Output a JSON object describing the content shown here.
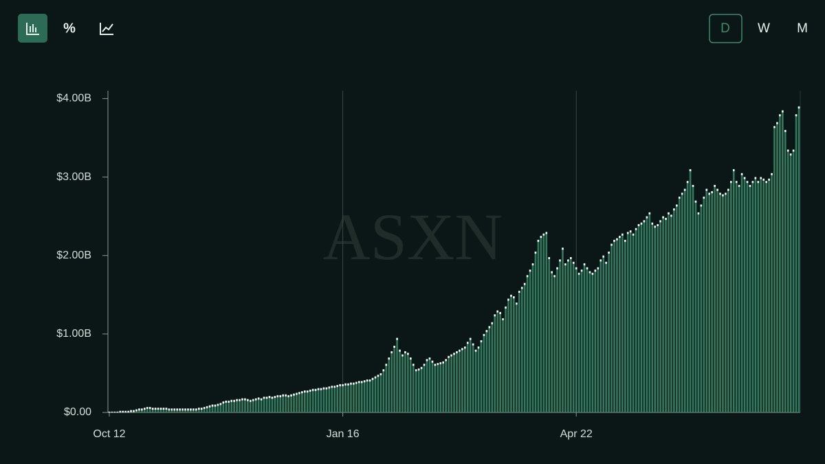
{
  "toolbar": {
    "percent_button": "%",
    "periods": [
      "D",
      "W",
      "M"
    ]
  },
  "chart_data": {
    "type": "bar",
    "watermark": "ASXN",
    "color": "#3a8c6c",
    "categories": [
      "Oct 12",
      null,
      null,
      null,
      null,
      null,
      null,
      null,
      null,
      null,
      null,
      null,
      null,
      null,
      null,
      null,
      null,
      null,
      null,
      null,
      null,
      null,
      null,
      null,
      null,
      null,
      null,
      null,
      null,
      null,
      null,
      null,
      null,
      null,
      null,
      null,
      null,
      null,
      null,
      null,
      null,
      null,
      null,
      null,
      null,
      null,
      null,
      null,
      null,
      null,
      null,
      null,
      null,
      null,
      null,
      null,
      null,
      null,
      null,
      null,
      null,
      null,
      null,
      null,
      null,
      null,
      null,
      null,
      null,
      null,
      null,
      null,
      null,
      null,
      null,
      null,
      null,
      null,
      null,
      null,
      null,
      null,
      null,
      null,
      null,
      null,
      "Jan 16",
      null,
      null,
      null,
      null,
      null,
      null,
      null,
      null,
      null,
      null,
      null,
      null,
      null,
      null,
      null,
      null,
      null,
      null,
      null,
      null,
      null,
      null,
      null,
      null,
      null,
      null,
      null,
      null,
      null,
      null,
      null,
      null,
      null,
      null,
      null,
      null,
      null,
      null,
      null,
      null,
      null,
      null,
      null,
      null,
      null,
      null,
      null,
      null,
      null,
      null,
      null,
      null,
      null,
      null,
      null,
      null,
      null,
      null,
      null,
      null,
      null,
      null,
      null,
      null,
      null,
      null,
      null,
      null,
      null,
      null,
      null,
      null,
      null,
      null,
      null,
      null,
      null,
      null,
      null,
      null,
      null,
      null,
      null,
      null,
      null,
      "Apr 22",
      null,
      null,
      null,
      null,
      null,
      null,
      null,
      null,
      null,
      null,
      null,
      null,
      null,
      null,
      null,
      null,
      null,
      null,
      null,
      null,
      null,
      null,
      null,
      null,
      null,
      null,
      null,
      null,
      null,
      null,
      null,
      null,
      null,
      null,
      null,
      null,
      null,
      null,
      null,
      null,
      null,
      null,
      null,
      null,
      null,
      null,
      null,
      null,
      null,
      null,
      null,
      null,
      null,
      null,
      null,
      null,
      null,
      null,
      null,
      null,
      null,
      null,
      null,
      null,
      null,
      null,
      null,
      null,
      null,
      null,
      null,
      null,
      null,
      null,
      null,
      null,
      null,
      null,
      null,
      null,
      null,
      null
    ],
    "values": [
      0.01,
      0.01,
      0.01,
      0.01,
      0.02,
      0.02,
      0.02,
      0.02,
      0.03,
      0.03,
      0.04,
      0.05,
      0.05,
      0.06,
      0.07,
      0.07,
      0.06,
      0.06,
      0.06,
      0.06,
      0.06,
      0.06,
      0.05,
      0.05,
      0.05,
      0.05,
      0.05,
      0.05,
      0.05,
      0.05,
      0.05,
      0.05,
      0.05,
      0.06,
      0.06,
      0.07,
      0.08,
      0.09,
      0.1,
      0.1,
      0.11,
      0.12,
      0.14,
      0.15,
      0.15,
      0.16,
      0.16,
      0.17,
      0.17,
      0.18,
      0.18,
      0.17,
      0.16,
      0.17,
      0.18,
      0.19,
      0.18,
      0.2,
      0.2,
      0.21,
      0.2,
      0.21,
      0.22,
      0.22,
      0.23,
      0.23,
      0.22,
      0.23,
      0.24,
      0.25,
      0.26,
      0.27,
      0.28,
      0.28,
      0.29,
      0.3,
      0.3,
      0.31,
      0.31,
      0.32,
      0.32,
      0.33,
      0.34,
      0.34,
      0.35,
      0.36,
      0.36,
      0.37,
      0.37,
      0.38,
      0.38,
      0.39,
      0.4,
      0.4,
      0.41,
      0.42,
      0.42,
      0.44,
      0.46,
      0.48,
      0.5,
      0.55,
      0.62,
      0.7,
      0.78,
      0.85,
      0.95,
      0.8,
      0.74,
      0.78,
      0.76,
      0.7,
      0.62,
      0.55,
      0.56,
      0.58,
      0.62,
      0.68,
      0.7,
      0.66,
      0.62,
      0.63,
      0.64,
      0.65,
      0.68,
      0.72,
      0.74,
      0.76,
      0.78,
      0.8,
      0.82,
      0.84,
      0.9,
      0.95,
      0.88,
      0.8,
      0.84,
      0.92,
      1.0,
      1.05,
      1.1,
      1.15,
      1.25,
      1.3,
      1.28,
      1.2,
      1.35,
      1.45,
      1.5,
      1.48,
      1.4,
      1.55,
      1.6,
      1.65,
      1.75,
      1.82,
      1.9,
      2.05,
      2.2,
      2.25,
      2.28,
      2.3,
      1.98,
      1.8,
      1.75,
      1.85,
      1.95,
      2.1,
      1.9,
      1.95,
      1.98,
      1.92,
      1.85,
      1.78,
      1.82,
      1.9,
      1.85,
      1.8,
      1.78,
      1.82,
      1.85,
      1.95,
      2.0,
      1.92,
      2.05,
      2.15,
      2.2,
      2.22,
      2.25,
      2.28,
      2.2,
      2.3,
      2.32,
      2.28,
      2.35,
      2.4,
      2.42,
      2.45,
      2.5,
      2.55,
      2.42,
      2.38,
      2.4,
      2.45,
      2.5,
      2.48,
      2.55,
      2.52,
      2.6,
      2.65,
      2.75,
      2.8,
      2.85,
      2.95,
      3.1,
      2.9,
      2.7,
      2.55,
      2.65,
      2.75,
      2.85,
      2.8,
      2.82,
      2.9,
      2.85,
      2.8,
      2.78,
      2.8,
      2.85,
      2.95,
      3.1,
      2.95,
      2.9,
      3.05,
      3.0,
      2.95,
      2.9,
      2.95,
      3.0,
      2.95,
      3.0,
      2.98,
      2.95,
      2.98,
      3.05,
      3.65,
      3.7,
      3.8,
      3.85,
      3.6,
      3.35,
      3.3,
      3.35,
      3.8,
      3.9
    ],
    "ylim": [
      0,
      4.1
    ],
    "yticks": [
      {
        "value": 0,
        "label": "$0.00"
      },
      {
        "value": 1,
        "label": "$1.00B"
      },
      {
        "value": 2,
        "label": "$2.00B"
      },
      {
        "value": 3,
        "label": "$3.00B"
      },
      {
        "value": 4,
        "label": "$4.00B"
      }
    ],
    "grid": true
  }
}
